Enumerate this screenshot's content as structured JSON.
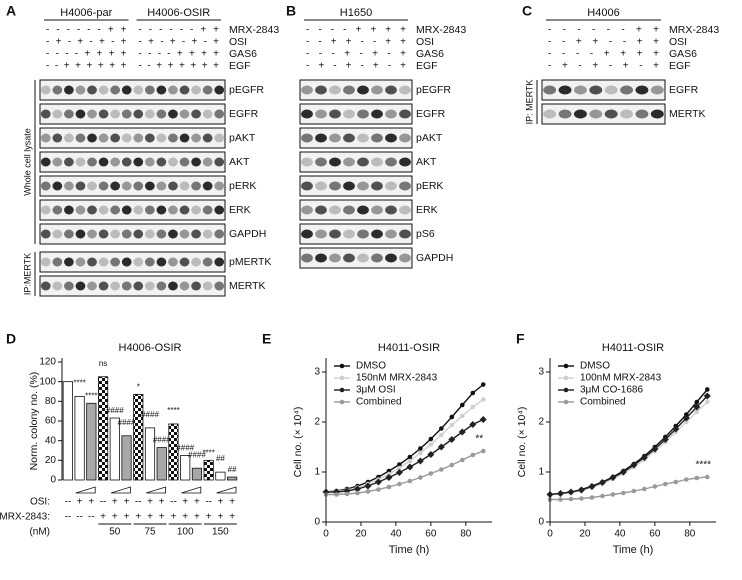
{
  "blots": [
    {
      "letter": "A",
      "groups": [
        {
          "title": "H4006-par",
          "signs": [
            "- - - - - - + +",
            "- + - + - + - +",
            "- - - - + + + +",
            "- - + + + + + +"
          ]
        },
        {
          "title": "H4006-OSIR",
          "signs": [
            "- - - - - - + +",
            "- + - + - + - +",
            "- - - - + + + +",
            "- - + + + + + +"
          ]
        }
      ],
      "conditions": [
        "MRX-2843",
        "OSI",
        "GAS6",
        "EGF"
      ],
      "sections": [
        {
          "label": "Whole cell lysate",
          "bands": [
            "pEGFR",
            "EGFR",
            "pAKT",
            "AKT",
            "pERK",
            "ERK",
            "GAPDH"
          ]
        },
        {
          "label": "IP:MERTK",
          "bands": [
            "pMERTK",
            "MERTK"
          ]
        }
      ]
    },
    {
      "letter": "B",
      "groups": [
        {
          "title": "H1650",
          "signs": [
            "- - - - + + + +",
            "- - + + - - + +",
            "- - - + - + - +",
            "- + - + - + - +"
          ]
        }
      ],
      "conditions": [
        "MRX-2843",
        "OSI",
        "GAS6",
        "EGF"
      ],
      "sections": [
        {
          "bands": [
            "pEGFR",
            "EGFR",
            "pAKT",
            "AKT",
            "pERK",
            "ERK",
            "pS6",
            "GAPDH"
          ]
        }
      ]
    },
    {
      "letter": "C",
      "groups": [
        {
          "title": "H4006",
          "signs": [
            "- - - - - - + +",
            "- - + + - - + +",
            "- - - - + + + +",
            "- + - + - + - +"
          ]
        }
      ],
      "conditions": [
        "MRX-2843",
        "OSI",
        "GAS6",
        "EGF"
      ],
      "sections": [
        {
          "label": "IP: MERTK",
          "bands": [
            "EGFR",
            "MERTK"
          ]
        }
      ]
    }
  ],
  "chart_data": [
    {
      "type": "bar",
      "letter": "D",
      "title": "H4006-OSIR",
      "ylabel": "Norm. colony no. (%)",
      "ylim": [
        0,
        120
      ],
      "yticks": [
        0,
        20,
        40,
        60,
        80,
        100,
        120
      ],
      "values": [
        100,
        85,
        78,
        105,
        63,
        45,
        87,
        53,
        33,
        57,
        25,
        12,
        20,
        8,
        3
      ],
      "fills": [
        "white",
        "white",
        "gray",
        "checker",
        "white",
        "gray",
        "checker",
        "white",
        "gray",
        "checker",
        "white",
        "gray",
        "checker",
        "white",
        "gray"
      ],
      "annotations": [
        null,
        "****",
        "****",
        "ns",
        "####",
        "####",
        "*",
        "####",
        "####",
        "****",
        "####",
        "####",
        "****",
        "##",
        "##"
      ],
      "rows": [
        {
          "label": "OSI:",
          "cells": [
            "--",
            "+",
            "+",
            "--",
            "+",
            "+",
            "--",
            "+",
            "+",
            "--",
            "+",
            "+",
            "--",
            "+",
            "+"
          ]
        },
        {
          "label": "MRX-2843:",
          "cells": [
            "--",
            "--",
            "--",
            "+",
            "+",
            "+",
            "+",
            "+",
            "+",
            "+",
            "+",
            "+",
            "+",
            "+",
            "+"
          ]
        }
      ],
      "dose_label": "(nM)",
      "doses": [
        "50",
        "75",
        "100",
        "150"
      ]
    },
    {
      "type": "line",
      "letter": "E",
      "title": "H4011-OSIR",
      "xlabel": "Time (h)",
      "ylabel": "Cell no. (× 10⁴)",
      "xlim": [
        0,
        95
      ],
      "xticks": [
        0,
        20,
        40,
        60,
        80
      ],
      "ylim": [
        0,
        3.2
      ],
      "yticks": [
        0,
        1,
        2,
        3
      ],
      "x": [
        0,
        6,
        12,
        18,
        24,
        30,
        36,
        42,
        48,
        54,
        60,
        66,
        72,
        78,
        84,
        90
      ],
      "series": [
        {
          "name": "DMSO",
          "color": "#111111",
          "marker": "circle",
          "values": [
            0.6,
            0.62,
            0.66,
            0.72,
            0.8,
            0.9,
            1.02,
            1.15,
            1.3,
            1.47,
            1.66,
            1.87,
            2.1,
            2.34,
            2.58,
            2.75
          ]
        },
        {
          "name": "150nM MRX-2843",
          "color": "#cfcfcf",
          "marker": "circle",
          "values": [
            0.6,
            0.61,
            0.64,
            0.69,
            0.76,
            0.85,
            0.96,
            1.08,
            1.22,
            1.38,
            1.55,
            1.74,
            1.94,
            2.12,
            2.3,
            2.45
          ]
        },
        {
          "name": "3μM OSI",
          "color": "#222222",
          "marker": "diamond",
          "values": [
            0.6,
            0.6,
            0.62,
            0.66,
            0.72,
            0.8,
            0.89,
            0.99,
            1.1,
            1.22,
            1.35,
            1.5,
            1.65,
            1.8,
            1.95,
            2.05
          ]
        },
        {
          "name": "Combined",
          "color": "#9a9a9a",
          "marker": "circle",
          "values": [
            0.55,
            0.55,
            0.56,
            0.58,
            0.61,
            0.65,
            0.7,
            0.76,
            0.82,
            0.89,
            0.97,
            1.05,
            1.14,
            1.24,
            1.34,
            1.42
          ]
        }
      ],
      "annotation": "**"
    },
    {
      "type": "line",
      "letter": "F",
      "title": "H4011-OSIR",
      "xlabel": "Time (h)",
      "ylabel": "Cell no. (× 10⁴)",
      "xlim": [
        0,
        95
      ],
      "xticks": [
        0,
        20,
        40,
        60,
        80
      ],
      "ylim": [
        0,
        3.2
      ],
      "yticks": [
        0,
        1,
        2,
        3
      ],
      "x": [
        0,
        6,
        12,
        18,
        24,
        30,
        36,
        42,
        48,
        54,
        60,
        66,
        72,
        78,
        84,
        90
      ],
      "series": [
        {
          "name": "DMSO",
          "color": "#111111",
          "marker": "circle",
          "values": [
            0.55,
            0.57,
            0.6,
            0.65,
            0.72,
            0.8,
            0.9,
            1.02,
            1.16,
            1.32,
            1.5,
            1.7,
            1.92,
            2.15,
            2.4,
            2.65
          ]
        },
        {
          "name": "100nM MRX-2843",
          "color": "#cfcfcf",
          "marker": "circle",
          "values": [
            0.55,
            0.56,
            0.59,
            0.63,
            0.69,
            0.77,
            0.86,
            0.97,
            1.1,
            1.25,
            1.42,
            1.6,
            1.8,
            2.0,
            2.2,
            2.4
          ]
        },
        {
          "name": "3μM CO-1686",
          "color": "#222222",
          "marker": "diamond",
          "values": [
            0.55,
            0.57,
            0.6,
            0.64,
            0.71,
            0.79,
            0.89,
            1.0,
            1.14,
            1.29,
            1.46,
            1.65,
            1.86,
            2.08,
            2.3,
            2.52
          ]
        },
        {
          "name": "Combined",
          "color": "#9a9a9a",
          "marker": "circle",
          "values": [
            0.45,
            0.45,
            0.46,
            0.47,
            0.49,
            0.52,
            0.55,
            0.58,
            0.62,
            0.66,
            0.71,
            0.76,
            0.8,
            0.85,
            0.88,
            0.9
          ]
        }
      ],
      "annotation": "****"
    }
  ]
}
